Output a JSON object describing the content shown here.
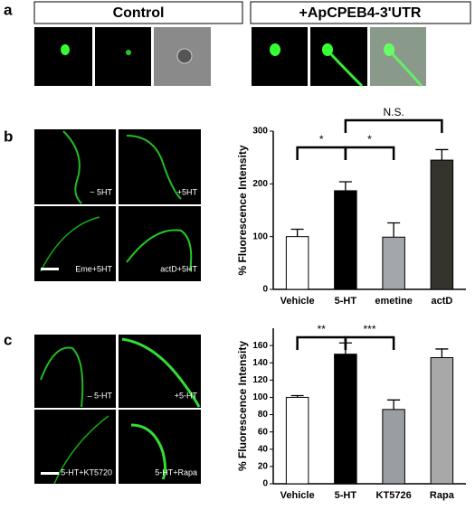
{
  "panel_labels": [
    "a",
    "b",
    "c"
  ],
  "panel_a": {
    "headers": [
      "Control",
      "+ApCPEB4-3'UTR"
    ]
  },
  "panel_b_images": [
    "− 5HT",
    "+5HT",
    "Eme+5HT",
    "actD+5HT"
  ],
  "panel_c_images": [
    "– 5-HT",
    "+5-HT",
    "5-HT+KT5720",
    "5-HT+Rapa"
  ],
  "chart_data": [
    {
      "type": "bar",
      "y_label": "% Fluorescence Intensity",
      "categories": [
        "Vehicle",
        "5-HT",
        "emetine",
        "actD"
      ],
      "values": [
        100,
        187,
        99,
        245
      ],
      "errors": [
        14,
        17,
        27,
        20
      ],
      "colors": [
        "#ffffff",
        "#000000",
        "#a3a6aa",
        "#34342a"
      ],
      "ylim": [
        0,
        300
      ],
      "yticks": [
        0,
        100,
        200,
        300
      ],
      "annotations": [
        "*",
        "*",
        "N.S."
      ]
    },
    {
      "type": "bar",
      "y_label": "% Fluorescence Intensity",
      "categories": [
        "Vehicle",
        "5-HT",
        "KT5726",
        "Rapa"
      ],
      "values": [
        100,
        150,
        86,
        146
      ],
      "errors": [
        2,
        13,
        11,
        10
      ],
      "colors": [
        "#ffffff",
        "#000000",
        "#9a9da1",
        "#a8a8a8"
      ],
      "ylim": [
        0,
        180
      ],
      "yticks": [
        0,
        20,
        40,
        60,
        80,
        100,
        120,
        140,
        160
      ],
      "annotations": [
        "**",
        "***"
      ]
    }
  ]
}
